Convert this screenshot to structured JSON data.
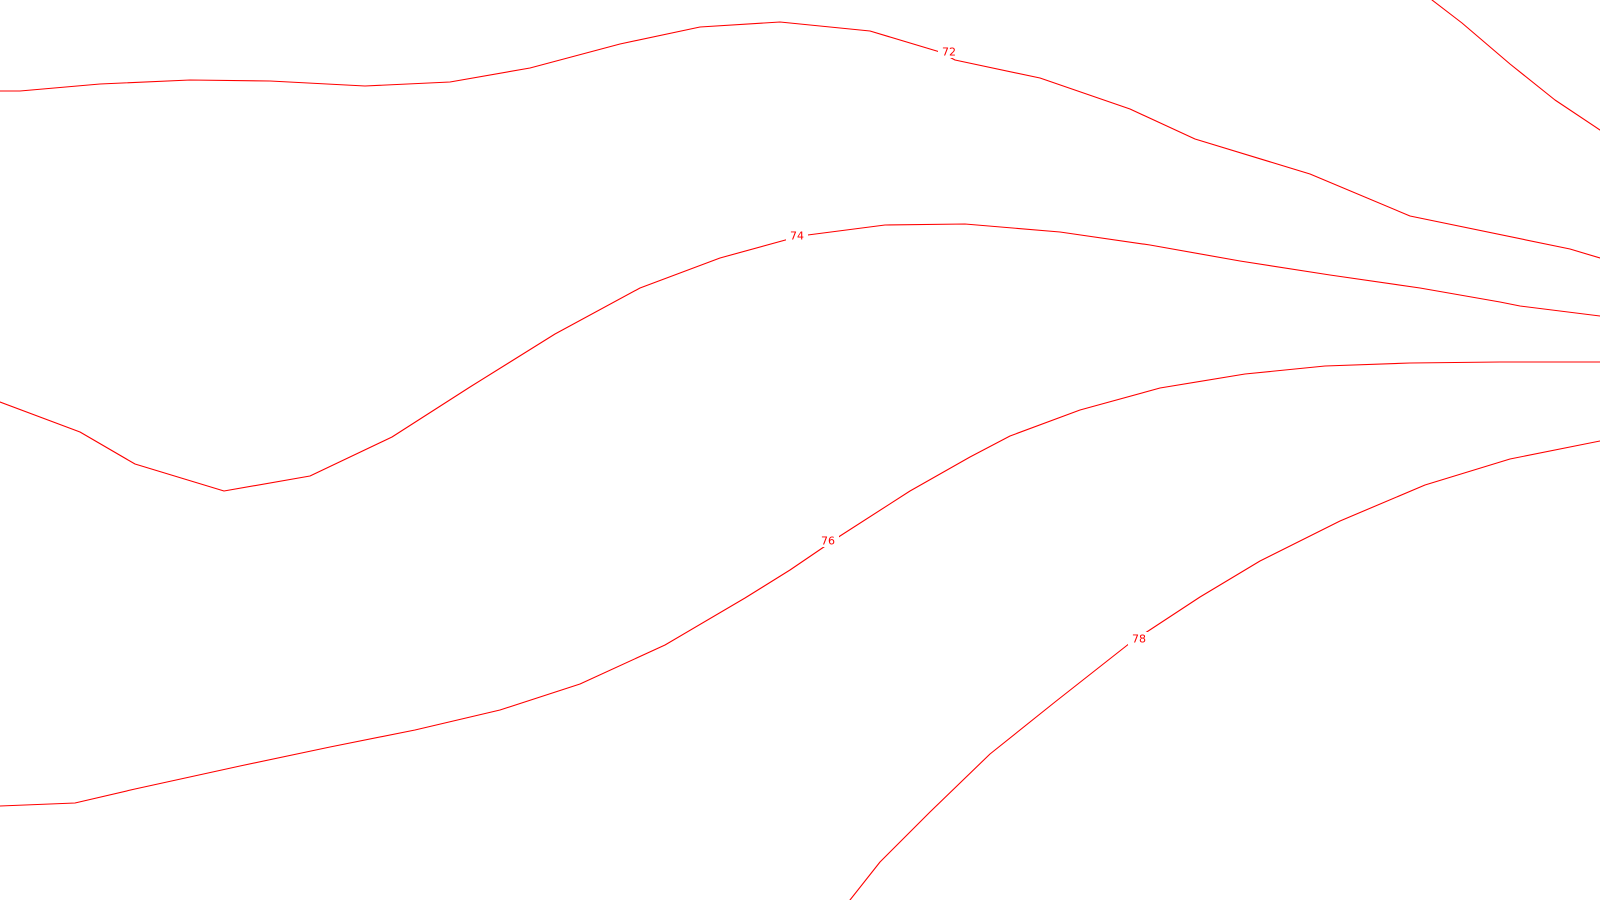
{
  "map": {
    "line_color": "#ff0000",
    "background_color": "#ffffff",
    "contours": [
      {
        "id": "a",
        "label": "72"
      },
      {
        "id": "b",
        "label": "74"
      },
      {
        "id": "c",
        "label": "76"
      },
      {
        "id": "d",
        "label": "78"
      },
      {
        "id": "e",
        "label": ""
      }
    ]
  }
}
